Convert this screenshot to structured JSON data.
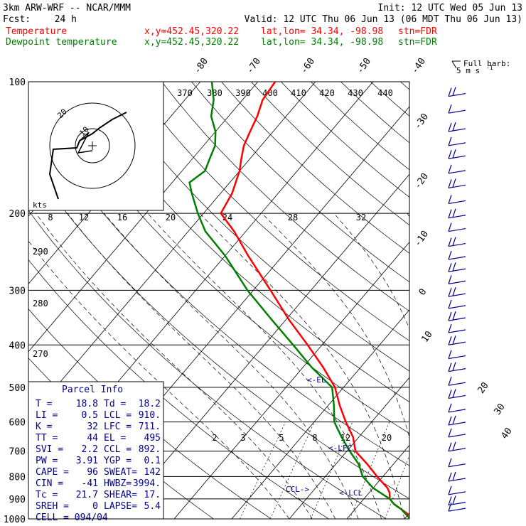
{
  "header": {
    "model": "3km ARW-WRF -- NCAR/MMM",
    "init": "Init: 12 UTC Wed 05 Jun 13",
    "fcst_label": "Fcst:",
    "fcst_value": "24 h",
    "valid": "Valid: 12 UTC Thu 06 Jun 13 (06 MDT Thu 06 Jun 13)",
    "temp_line": {
      "name": "Temperature",
      "xy": "x,y=452.45,320.22",
      "latlon": "lat,lon= 34.34, -98.98",
      "stn": "stn=FDR",
      "color": "#ff0000"
    },
    "dew_line": {
      "name": "Dewpoint temperature",
      "xy": "x,y=452.45,320.22",
      "latlon": "lat,lon= 34.34, -98.98",
      "stn": "stn=FDR",
      "color": "#008000"
    }
  },
  "legend_barb": {
    "line1": "Full barb:",
    "line2": "5 m s",
    "exp": "-1"
  },
  "pressure_labels": [
    "100",
    "200",
    "300",
    "400",
    "500",
    "600",
    "700",
    "800",
    "900",
    "1000"
  ],
  "pressure_levels": [
    100,
    200,
    300,
    400,
    500,
    600,
    700,
    800,
    900,
    1000
  ],
  "temp_labels": [
    "-80",
    "-70",
    "-60",
    "-50",
    "-40",
    "-30",
    "-20",
    "-10",
    "0",
    "10",
    "20",
    "30",
    "40"
  ],
  "theta_labels": [
    "370",
    "380",
    "390",
    "400",
    "410",
    "420",
    "430",
    "440"
  ],
  "theta_left_labels": [
    "290",
    "280",
    "270"
  ],
  "mixing_labels": [
    "2",
    "3",
    "5",
    "8",
    "12",
    "20"
  ],
  "hodo": {
    "unit": "kts",
    "ticks": [
      "8",
      "12",
      "16",
      "20",
      "24",
      "28",
      "32"
    ]
  },
  "markers": {
    "el": "<-EL",
    "lfc": "<-LFC",
    "ccl": "CCL->",
    "lcl": "<-LCL"
  },
  "parcel": {
    "title": "Parcel Info",
    "rows": [
      [
        "T  =",
        "18.8",
        "Td =",
        "18.2"
      ],
      [
        "LI =",
        "0.5",
        "LCL =",
        "910."
      ],
      [
        "K  =",
        "32",
        "LFC =",
        "711."
      ],
      [
        "TT =",
        "44",
        "EL  =",
        "495"
      ],
      [
        "SVI =",
        "2.2",
        "CCL =",
        "892."
      ],
      [
        "PW =",
        "3.91",
        "YGP =",
        "0.1"
      ],
      [
        "CAPE =",
        "96",
        "SWEAT=",
        "142"
      ],
      [
        "CIN =",
        "-41",
        "HWBZ=",
        "3994."
      ],
      [
        "Tc =",
        "21.7",
        "SHEAR=",
        "17."
      ],
      [
        "SREH =",
        "0",
        "LAPSE=",
        "5.4"
      ]
    ],
    "cell": "CELL = 094/04"
  },
  "chart_data": {
    "type": "line",
    "x_unit": "deg C",
    "y_unit": "hPa",
    "y_log": true,
    "ylim": [
      100,
      1000
    ],
    "series": [
      {
        "name": "Temperature",
        "color": "#ff0000",
        "points": [
          [
            1000,
            21.7
          ],
          [
            950,
            18.0
          ],
          [
            925,
            16.0
          ],
          [
            900,
            14.5
          ],
          [
            870,
            13.5
          ],
          [
            850,
            12.5
          ],
          [
            800,
            9.0
          ],
          [
            750,
            5.5
          ],
          [
            700,
            1.5
          ],
          [
            650,
            -1.0
          ],
          [
            600,
            -4.5
          ],
          [
            550,
            -8.0
          ],
          [
            500,
            -11.5
          ],
          [
            450,
            -16.5
          ],
          [
            400,
            -22.5
          ],
          [
            350,
            -29.5
          ],
          [
            300,
            -37.0
          ],
          [
            250,
            -46.0
          ],
          [
            220,
            -52.0
          ],
          [
            200,
            -57.0
          ],
          [
            180,
            -58.0
          ],
          [
            160,
            -60.0
          ],
          [
            150,
            -61.5
          ],
          [
            140,
            -63.0
          ],
          [
            130,
            -64.0
          ],
          [
            120,
            -65.0
          ],
          [
            110,
            -66.5
          ],
          [
            100,
            -67.0
          ]
        ]
      },
      {
        "name": "Dewpoint temperature",
        "color": "#008000",
        "points": [
          [
            1000,
            21.0
          ],
          [
            950,
            18.0
          ],
          [
            925,
            16.0
          ],
          [
            900,
            14.5
          ],
          [
            850,
            10.0
          ],
          [
            800,
            6.5
          ],
          [
            750,
            4.0
          ],
          [
            700,
            0.5
          ],
          [
            650,
            -3.0
          ],
          [
            600,
            -6.5
          ],
          [
            550,
            -9.0
          ],
          [
            500,
            -12.0
          ],
          [
            450,
            -18.5
          ],
          [
            400,
            -25.0
          ],
          [
            350,
            -32.5
          ],
          [
            300,
            -41.0
          ],
          [
            250,
            -50.0
          ],
          [
            220,
            -57.0
          ],
          [
            200,
            -61.0
          ],
          [
            180,
            -65.0
          ],
          [
            170,
            -67.0
          ],
          [
            160,
            -66.0
          ],
          [
            150,
            -67.0
          ],
          [
            140,
            -68.0
          ],
          [
            130,
            -70.0
          ],
          [
            120,
            -73.0
          ],
          [
            110,
            -75.0
          ],
          [
            100,
            -78.0
          ]
        ]
      }
    ],
    "wind_barbs_pressure": [
      108,
      118,
      130,
      140,
      150,
      162,
      175,
      190,
      205,
      220,
      238,
      255,
      272,
      290,
      310,
      330,
      352,
      375,
      400,
      430,
      460,
      495,
      530,
      570,
      610,
      650,
      700,
      760,
      820,
      880,
      930,
      960
    ]
  }
}
